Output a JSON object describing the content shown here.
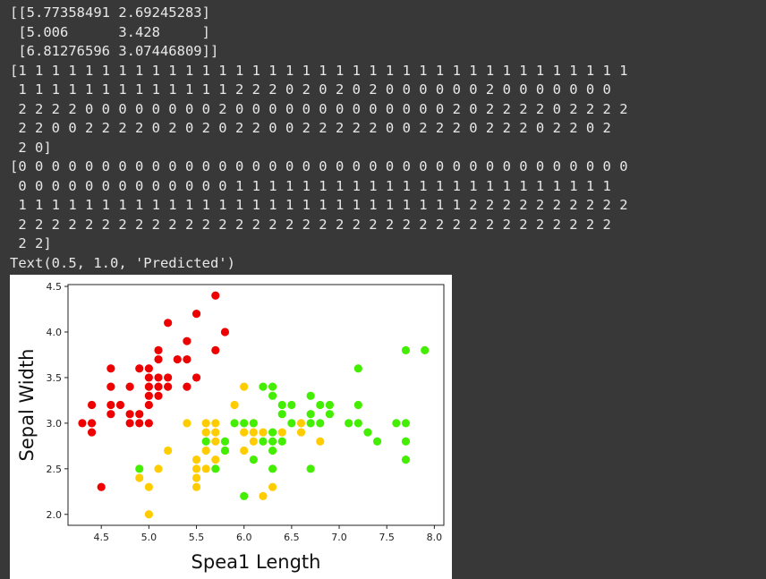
{
  "output": {
    "lines": [
      "[[5.77358491 2.69245283]",
      " [5.006      3.428     ]",
      " [6.81276596 3.07446809]]",
      "[1 1 1 1 1 1 1 1 1 1 1 1 1 1 1 1 1 1 1 1 1 1 1 1 1 1 1 1 1 1 1 1 1 1 1 1 1",
      " 1 1 1 1 1 1 1 1 1 1 1 1 1 2 2 2 0 2 0 2 0 2 0 0 0 0 0 0 2 0 0 0 0 0 0 0",
      " 2 2 2 2 0 0 0 0 0 0 0 0 2 0 0 0 0 0 0 0 0 0 0 0 0 0 2 0 2 2 2 2 0 2 2 2 2",
      " 2 2 0 0 2 2 2 2 0 2 0 2 0 2 2 0 0 2 2 2 2 2 0 0 2 2 2 0 2 2 2 0 2 2 0 2",
      " 2 0]",
      "[0 0 0 0 0 0 0 0 0 0 0 0 0 0 0 0 0 0 0 0 0 0 0 0 0 0 0 0 0 0 0 0 0 0 0 0 0",
      " 0 0 0 0 0 0 0 0 0 0 0 0 0 1 1 1 1 1 1 1 1 1 1 1 1 1 1 1 1 1 1 1 1 1 1 1",
      " 1 1 1 1 1 1 1 1 1 1 1 1 1 1 1 1 1 1 1 1 1 1 1 1 1 1 1 2 2 2 2 2 2 2 2 2 2",
      " 2 2 2 2 2 2 2 2 2 2 2 2 2 2 2 2 2 2 2 2 2 2 2 2 2 2 2 2 2 2 2 2 2 2 2 2",
      " 2 2]",
      "Text(0.5, 1.0, 'Predicted')"
    ]
  },
  "chart_data": {
    "type": "scatter",
    "title": "",
    "xlabel": "Spea1 Length",
    "ylabel": "Sepal Width",
    "xlim": [
      4.15,
      8.1
    ],
    "ylim": [
      1.88,
      4.52
    ],
    "xticks": [
      "4.5",
      "5.0",
      "5.5",
      "6.0",
      "6.5",
      "7.0",
      "7.5",
      "8.0"
    ],
    "yticks": [
      "2.0",
      "2.5",
      "3.0",
      "3.5",
      "4.0",
      "4.5"
    ],
    "grid": false,
    "colors": {
      "red": "#ee0000",
      "orange": "#ffcc00",
      "green": "#44ee00"
    },
    "series": [
      {
        "color": "red",
        "points": [
          [
            4.3,
            3.0
          ],
          [
            4.4,
            2.9
          ],
          [
            4.4,
            3.0
          ],
          [
            4.4,
            3.2
          ],
          [
            4.5,
            2.3
          ],
          [
            4.6,
            3.1
          ],
          [
            4.6,
            3.2
          ],
          [
            4.6,
            3.4
          ],
          [
            4.6,
            3.6
          ],
          [
            4.7,
            3.2
          ],
          [
            4.8,
            3.0
          ],
          [
            4.8,
            3.1
          ],
          [
            4.8,
            3.4
          ],
          [
            4.9,
            3.0
          ],
          [
            4.9,
            3.1
          ],
          [
            4.9,
            3.6
          ],
          [
            5.0,
            3.0
          ],
          [
            5.0,
            3.2
          ],
          [
            5.0,
            3.3
          ],
          [
            5.0,
            3.4
          ],
          [
            5.0,
            3.5
          ],
          [
            5.0,
            3.6
          ],
          [
            5.1,
            3.3
          ],
          [
            5.1,
            3.4
          ],
          [
            5.1,
            3.5
          ],
          [
            5.1,
            3.7
          ],
          [
            5.1,
            3.8
          ],
          [
            5.2,
            3.4
          ],
          [
            5.2,
            3.5
          ],
          [
            5.2,
            4.1
          ],
          [
            5.3,
            3.7
          ],
          [
            5.4,
            3.4
          ],
          [
            5.4,
            3.7
          ],
          [
            5.4,
            3.9
          ],
          [
            5.5,
            3.5
          ],
          [
            5.5,
            4.2
          ],
          [
            5.7,
            3.8
          ],
          [
            5.7,
            4.4
          ],
          [
            5.8,
            4.0
          ]
        ]
      },
      {
        "color": "orange",
        "points": [
          [
            4.9,
            2.4
          ],
          [
            5.0,
            2.0
          ],
          [
            5.0,
            2.3
          ],
          [
            5.1,
            2.5
          ],
          [
            5.2,
            2.7
          ],
          [
            5.4,
            3.0
          ],
          [
            5.5,
            2.3
          ],
          [
            5.5,
            2.4
          ],
          [
            5.5,
            2.5
          ],
          [
            5.5,
            2.6
          ],
          [
            5.6,
            2.5
          ],
          [
            5.6,
            2.7
          ],
          [
            5.6,
            2.9
          ],
          [
            5.6,
            3.0
          ],
          [
            5.7,
            2.6
          ],
          [
            5.7,
            2.8
          ],
          [
            5.7,
            2.9
          ],
          [
            5.7,
            3.0
          ],
          [
            5.8,
            2.7
          ],
          [
            5.9,
            3.2
          ],
          [
            6.0,
            2.7
          ],
          [
            6.0,
            2.9
          ],
          [
            6.0,
            3.4
          ],
          [
            6.1,
            2.8
          ],
          [
            6.1,
            2.9
          ],
          [
            6.1,
            3.0
          ],
          [
            6.2,
            2.2
          ],
          [
            6.2,
            2.9
          ],
          [
            6.3,
            2.3
          ],
          [
            6.4,
            2.9
          ],
          [
            6.6,
            2.9
          ],
          [
            6.6,
            3.0
          ],
          [
            6.8,
            2.8
          ]
        ]
      },
      {
        "color": "green",
        "points": [
          [
            4.9,
            2.5
          ],
          [
            5.6,
            2.8
          ],
          [
            5.7,
            2.5
          ],
          [
            5.8,
            2.7
          ],
          [
            5.8,
            2.8
          ],
          [
            5.9,
            3.0
          ],
          [
            6.0,
            2.2
          ],
          [
            6.0,
            3.0
          ],
          [
            6.1,
            2.6
          ],
          [
            6.1,
            3.0
          ],
          [
            6.2,
            2.8
          ],
          [
            6.2,
            3.4
          ],
          [
            6.3,
            2.5
          ],
          [
            6.3,
            2.7
          ],
          [
            6.3,
            2.8
          ],
          [
            6.3,
            2.9
          ],
          [
            6.3,
            3.3
          ],
          [
            6.3,
            3.4
          ],
          [
            6.4,
            2.8
          ],
          [
            6.4,
            3.1
          ],
          [
            6.4,
            3.2
          ],
          [
            6.5,
            3.0
          ],
          [
            6.5,
            3.2
          ],
          [
            6.7,
            2.5
          ],
          [
            6.7,
            3.0
          ],
          [
            6.7,
            3.1
          ],
          [
            6.7,
            3.3
          ],
          [
            6.8,
            3.0
          ],
          [
            6.8,
            3.2
          ],
          [
            6.9,
            3.1
          ],
          [
            6.9,
            3.2
          ],
          [
            7.1,
            3.0
          ],
          [
            7.2,
            3.0
          ],
          [
            7.2,
            3.2
          ],
          [
            7.2,
            3.6
          ],
          [
            7.3,
            2.9
          ],
          [
            7.4,
            2.8
          ],
          [
            7.6,
            3.0
          ],
          [
            7.7,
            2.6
          ],
          [
            7.7,
            2.8
          ],
          [
            7.7,
            3.0
          ],
          [
            7.7,
            3.8
          ],
          [
            7.9,
            3.8
          ]
        ]
      }
    ]
  }
}
